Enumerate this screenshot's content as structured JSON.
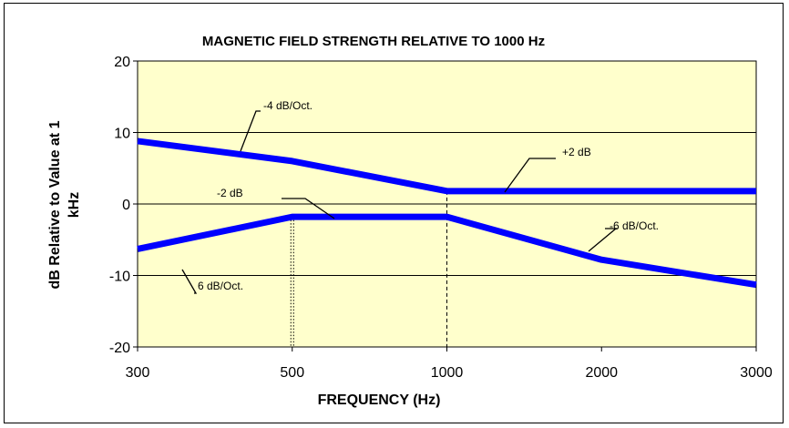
{
  "chart_data": {
    "type": "line",
    "title": "MAGNETIC FIELD STRENGTH RELATIVE TO 1000 Hz",
    "xlabel": "FREQUENCY (Hz)",
    "ylabel_line1": "dB Relative to Value at 1",
    "ylabel_line2": "kHz",
    "x_scale": "categorical",
    "x_ticks": [
      "300",
      "500",
      "1000",
      "2000",
      "3000"
    ],
    "ylim": [
      -20,
      20
    ],
    "y_ticks": [
      -20,
      -10,
      0,
      10,
      20
    ],
    "y_tick_labels": [
      "-20",
      "-10",
      "0",
      "10",
      "20"
    ],
    "grid": "horizontal",
    "plot_background": "#FFFFCC",
    "series_color": "#0000FF",
    "series": [
      {
        "points": [
          [
            "300",
            8.8
          ],
          [
            "500",
            6.0
          ],
          [
            "1000",
            1.8
          ],
          [
            "2000",
            1.8
          ],
          [
            "3000",
            1.8
          ]
        ]
      },
      {
        "points": [
          [
            "300",
            -6.3
          ],
          [
            "500",
            -1.8
          ],
          [
            "1000",
            -1.8
          ],
          [
            "2000",
            -7.8
          ],
          [
            "3000",
            -11.3
          ]
        ]
      }
    ],
    "reference_lines": [
      {
        "x": "500",
        "style": "dotted-double"
      },
      {
        "x": "1000",
        "style": "dashed"
      }
    ],
    "annotations": [
      "-4 dB/Oct.",
      "+2 dB",
      "-2 dB",
      "-6 dB/Oct.",
      "6 dB/Oct."
    ]
  }
}
